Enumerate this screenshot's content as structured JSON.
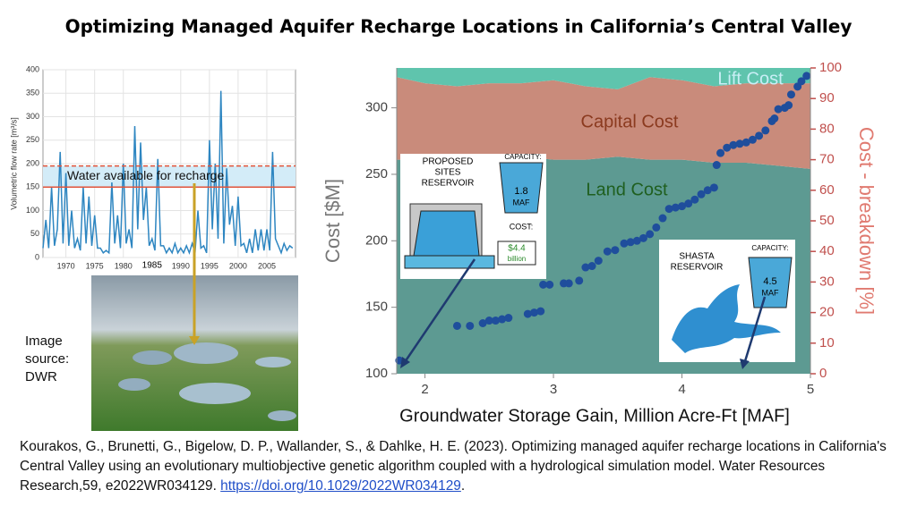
{
  "title": "Optimizing Managed Aquifer Recharge Locations in California’s Central Valley",
  "image_caption": "Image source: DWR",
  "citation": {
    "text": "Kourakos, G., Brunetti, G., Bigelow, D. P., Wallander, S., & Dahlke, H. E. (2023). Optimizing managed aquifer recharge locations in California's Central Valley using an evolutionary multiobjective genetic algorithm coupled with a hydrological simulation model. Water  Resources Research,59, e2022WR034129. ",
    "link": "https://doi.org/10.1029/2022WR034129",
    "end": "."
  },
  "insets": [
    {
      "title_lines": [
        "PROPOSED",
        "SITES",
        "RESERVOIR"
      ],
      "capacity_label": "CAPACITY:",
      "capacity_lines": [
        "1.8",
        "MAF"
      ],
      "cost_label": "COST:",
      "cost_lines": [
        "$4.4",
        "billion"
      ]
    },
    {
      "title_lines": [
        "SHASTA",
        "RESERVOIR"
      ],
      "capacity_label": "CAPACITY:",
      "capacity_lines": [
        "4.5",
        "MAF"
      ]
    }
  ],
  "chart_data": [
    {
      "type": "line",
      "y_label": "Volumetric flow rate [m³/s]",
      "color": "#2e86c1",
      "grid": true,
      "xlim": [
        1966,
        2010
      ],
      "xticks": [
        1970,
        1975,
        1980,
        1990,
        1995,
        2000,
        2005
      ],
      "ylim": [
        0,
        400
      ],
      "yticks": [
        0,
        50,
        100,
        150,
        200,
        250,
        300,
        350,
        400
      ],
      "x": [
        1966,
        1966.5,
        1967,
        1967.5,
        1968,
        1968.5,
        1969,
        1969.5,
        1970,
        1970.5,
        1971,
        1971.5,
        1972,
        1972.5,
        1973,
        1973.5,
        1974,
        1974.5,
        1975,
        1975.5,
        1976,
        1976.5,
        1977,
        1977.5,
        1978,
        1978.5,
        1979,
        1979.5,
        1980,
        1980.5,
        1981,
        1981.5,
        1982,
        1982.5,
        1983,
        1983.5,
        1984,
        1984.5,
        1985,
        1985.5,
        1986,
        1986.5,
        1987,
        1987.5,
        1988,
        1988.5,
        1989,
        1989.5,
        1990,
        1990.5,
        1991,
        1991.5,
        1992,
        1992.5,
        1993,
        1993.5,
        1994,
        1994.5,
        1995,
        1995.5,
        1996,
        1996.5,
        1997,
        1997.5,
        1998,
        1998.5,
        1999,
        1999.5,
        2000,
        2000.5,
        2001,
        2001.5,
        2002,
        2002.5,
        2003,
        2003.5,
        2004,
        2004.5,
        2005,
        2005.5,
        2006,
        2006.5,
        2007,
        2007.5,
        2008,
        2008.5,
        2009,
        2009.5
      ],
      "values": [
        20,
        80,
        20,
        150,
        25,
        60,
        225,
        30,
        180,
        25,
        100,
        20,
        40,
        15,
        150,
        30,
        130,
        25,
        90,
        20,
        20,
        10,
        15,
        10,
        160,
        30,
        90,
        20,
        200,
        30,
        60,
        20,
        280,
        60,
        245,
        80,
        150,
        25,
        40,
        15,
        210,
        25,
        25,
        10,
        20,
        10,
        30,
        10,
        20,
        10,
        25,
        10,
        30,
        10,
        100,
        20,
        25,
        10,
        250,
        60,
        200,
        40,
        355,
        30,
        190,
        70,
        110,
        25,
        130,
        25,
        30,
        10,
        40,
        10,
        60,
        15,
        60,
        15,
        60,
        15,
        225,
        40,
        25,
        10,
        30,
        15,
        25,
        20
      ],
      "band": {
        "lower": 150,
        "upper": 195,
        "label": "Water available for recharge",
        "color": "#d3ecf8",
        "line_color": "#e0533a"
      },
      "annotation": {
        "x": 1985,
        "text": "1985"
      }
    },
    {
      "type": "scatter",
      "x_label": "Groundwater Storage Gain, Million Acre-Ft [MAF]",
      "y_label": "Cost [$M]",
      "y2_label": "Cost - breakdown [%]",
      "color": "#1f4e9c",
      "xlim": [
        1.78,
        5
      ],
      "xticks": [
        2,
        3,
        4,
        5
      ],
      "ylim": [
        100,
        330
      ],
      "yticks": [
        100,
        150,
        200,
        250,
        300
      ],
      "y2lim": [
        0,
        100
      ],
      "y2ticks": [
        0,
        10,
        20,
        30,
        40,
        50,
        60,
        70,
        80,
        90,
        100
      ],
      "x": [
        1.8,
        2.25,
        2.35,
        2.45,
        2.5,
        2.55,
        2.6,
        2.65,
        2.8,
        2.85,
        2.9,
        2.92,
        2.97,
        3.08,
        3.12,
        3.2,
        3.25,
        3.3,
        3.35,
        3.42,
        3.48,
        3.55,
        3.6,
        3.65,
        3.7,
        3.75,
        3.8,
        3.85,
        3.9,
        3.95,
        4.0,
        4.05,
        4.1,
        4.15,
        4.2,
        4.25,
        4.27,
        4.3,
        4.35,
        4.4,
        4.45,
        4.5,
        4.55,
        4.6,
        4.65,
        4.7,
        4.72,
        4.75,
        4.8,
        4.83,
        4.85,
        4.9,
        4.93,
        4.97
      ],
      "values": [
        110,
        136,
        136,
        138,
        140,
        140,
        141,
        142,
        145,
        146,
        147,
        167,
        167,
        168,
        168,
        170,
        180,
        181,
        185,
        192,
        193,
        198,
        199,
        200,
        202,
        205,
        210,
        217,
        224,
        225,
        226,
        228,
        231,
        235,
        238,
        240,
        257,
        266,
        270,
        272,
        273,
        274,
        276,
        279,
        283,
        290,
        292,
        299,
        300,
        302,
        310,
        316,
        320,
        324
      ],
      "areas": {
        "x": [
          1.78,
          2,
          2.25,
          2.5,
          2.75,
          3,
          3.25,
          3.5,
          3.75,
          4,
          4.25,
          4.5,
          4.75,
          5
        ],
        "series": [
          {
            "name": "Land Cost",
            "color": "#5d9a92",
            "axis": "y2",
            "values": [
              70,
              70,
              71,
              70,
              71,
              70,
              70,
              71,
              70,
              70,
              69,
              69,
              68,
              67
            ]
          },
          {
            "name": "Capital Cost",
            "color": "#c98b7b",
            "axis": "y2",
            "values": [
              27,
              25,
              23,
              25,
              24,
              26,
              24,
              22,
              27,
              26,
              25,
              26,
              27,
              28
            ]
          },
          {
            "name": "Lift Cost",
            "color": "#5fc4ad",
            "axis": "y2",
            "values": [
              3,
              5,
              6,
              5,
              5,
              4,
              6,
              7,
              3,
              4,
              6,
              5,
              5,
              5
            ]
          }
        ]
      }
    }
  ]
}
